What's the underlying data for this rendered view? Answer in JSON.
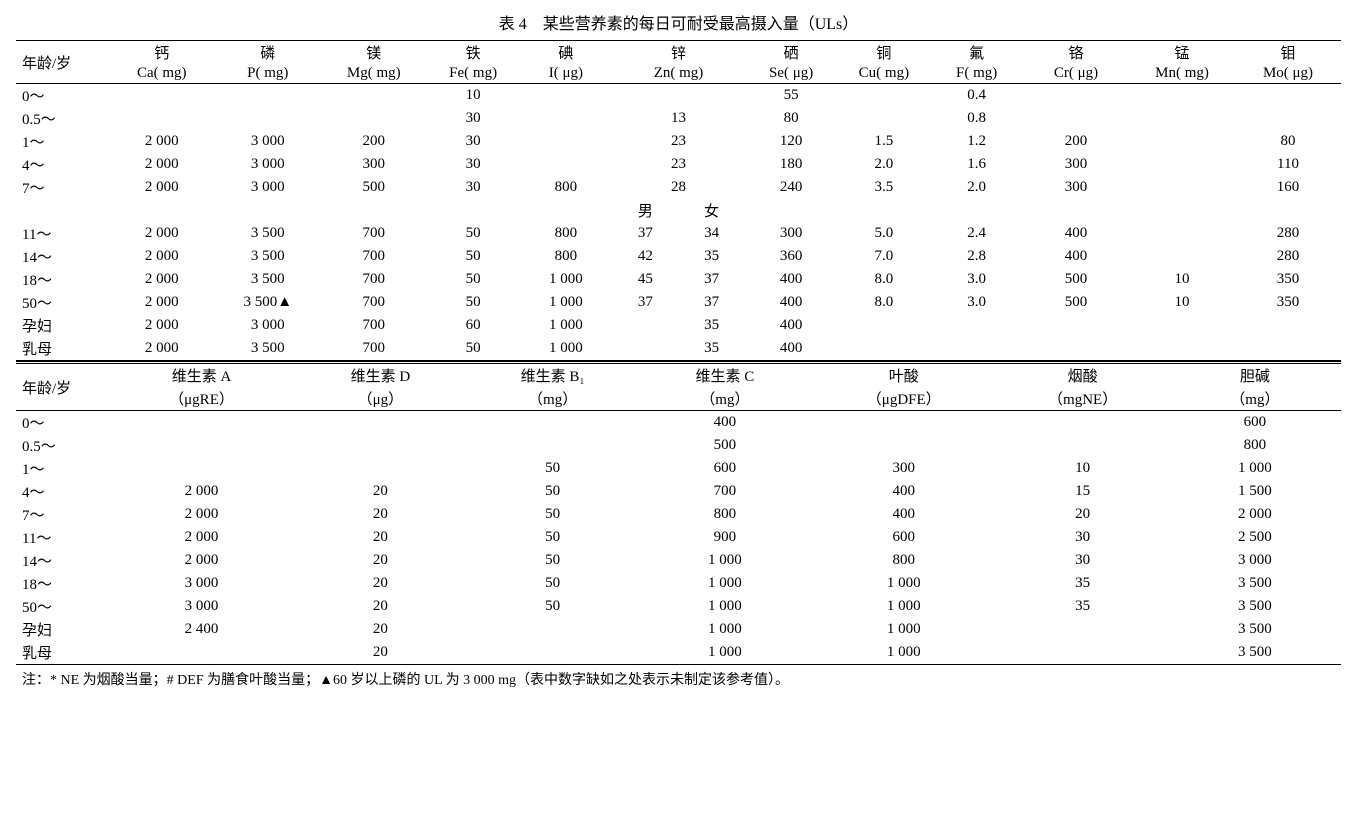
{
  "title": "表 4　某些营养素的每日可耐受最高摄入量（ULs）",
  "note": "注：* NE 为烟酸当量；# DEF 为膳食叶酸当量；▲60 岁以上磷的 UL 为 3 000 mg（表中数字缺如之处表示未制定该参考值）。",
  "t1": {
    "age_label": "年龄/岁",
    "headers_cn": [
      "钙",
      "磷",
      "镁",
      "铁",
      "碘",
      "锌",
      "硒",
      "铜",
      "氟",
      "铬",
      "锰",
      "钼"
    ],
    "headers_en": [
      "Ca( mg)",
      "P( mg)",
      "Mg( mg)",
      "Fe( mg)",
      "I( μg)",
      "Zn( mg)",
      "Se( μg)",
      "Cu( mg)",
      "F( mg)",
      "Cr( μg)",
      "Mn( mg)",
      "Mo( μg)"
    ],
    "zn_sub": {
      "m": "男",
      "f": "女"
    },
    "rows": [
      {
        "age": "0～",
        "ca": "",
        "p": "",
        "mg": "",
        "fe": "10",
        "i": "",
        "zn": "",
        "se": "55",
        "cu": "",
        "f": "0.4",
        "cr": "",
        "mn": "",
        "mo": ""
      },
      {
        "age": "0.5～",
        "ca": "",
        "p": "",
        "mg": "",
        "fe": "30",
        "i": "",
        "zn": "13",
        "se": "80",
        "cu": "",
        "f": "0.8",
        "cr": "",
        "mn": "",
        "mo": ""
      },
      {
        "age": "1～",
        "ca": "2 000",
        "p": "3 000",
        "mg": "200",
        "fe": "30",
        "i": "",
        "zn": "23",
        "se": "120",
        "cu": "1.5",
        "f": "1.2",
        "cr": "200",
        "mn": "",
        "mo": "80"
      },
      {
        "age": "4～",
        "ca": "2 000",
        "p": "3 000",
        "mg": "300",
        "fe": "30",
        "i": "",
        "zn": "23",
        "se": "180",
        "cu": "2.0",
        "f": "1.6",
        "cr": "300",
        "mn": "",
        "mo": "110"
      },
      {
        "age": "7～",
        "ca": "2 000",
        "p": "3 000",
        "mg": "500",
        "fe": "30",
        "i": "800",
        "zn": "28",
        "se": "240",
        "cu": "3.5",
        "f": "2.0",
        "cr": "300",
        "mn": "",
        "mo": "160"
      }
    ],
    "rows_split": [
      {
        "age": "11～",
        "ca": "2 000",
        "p": "3 500",
        "mg": "700",
        "fe": "50",
        "i": "800",
        "znm": "37",
        "znf": "34",
        "se": "300",
        "cu": "5.0",
        "f": "2.4",
        "cr": "400",
        "mn": "",
        "mo": "280"
      },
      {
        "age": "14～",
        "ca": "2 000",
        "p": "3 500",
        "mg": "700",
        "fe": "50",
        "i": "800",
        "znm": "42",
        "znf": "35",
        "se": "360",
        "cu": "7.0",
        "f": "2.8",
        "cr": "400",
        "mn": "",
        "mo": "280"
      },
      {
        "age": "18～",
        "ca": "2 000",
        "p": "3 500",
        "mg": "700",
        "fe": "50",
        "i": "1 000",
        "znm": "45",
        "znf": "37",
        "se": "400",
        "cu": "8.0",
        "f": "3.0",
        "cr": "500",
        "mn": "10",
        "mo": "350"
      },
      {
        "age": "50～",
        "ca": "2 000",
        "p": "3 500▲",
        "mg": "700",
        "fe": "50",
        "i": "1 000",
        "znm": "37",
        "znf": "37",
        "se": "400",
        "cu": "8.0",
        "f": "3.0",
        "cr": "500",
        "mn": "10",
        "mo": "350"
      },
      {
        "age": "孕妇",
        "ca": "2 000",
        "p": "3 000",
        "mg": "700",
        "fe": "60",
        "i": "1 000",
        "znm": "",
        "znf": "35",
        "se": "400",
        "cu": "",
        "f": "",
        "cr": "",
        "mn": "",
        "mo": ""
      },
      {
        "age": "乳母",
        "ca": "2 000",
        "p": "3 500",
        "mg": "700",
        "fe": "50",
        "i": "1 000",
        "znm": "",
        "znf": "35",
        "se": "400",
        "cu": "",
        "f": "",
        "cr": "",
        "mn": "",
        "mo": ""
      }
    ]
  },
  "t2": {
    "age_label": "年龄/岁",
    "headers_cn": [
      "维生素 A",
      "维生素 D",
      "维生素 B₁",
      "维生素 C",
      "叶酸",
      "烟酸",
      "胆碱"
    ],
    "headers_en": [
      "（μgRE）",
      "（μg）",
      "（mg）",
      "（mg）",
      "（μgDFE）",
      "（mgNE）",
      "（mg）"
    ],
    "rows": [
      {
        "age": "0～",
        "va": "",
        "vd": "",
        "vb1": "",
        "vc": "400",
        "fa": "",
        "na": "",
        "ch": "600"
      },
      {
        "age": "0.5～",
        "va": "",
        "vd": "",
        "vb1": "",
        "vc": "500",
        "fa": "",
        "na": "",
        "ch": "800"
      },
      {
        "age": "1～",
        "va": "",
        "vd": "",
        "vb1": "50",
        "vc": "600",
        "fa": "300",
        "na": "10",
        "ch": "1 000"
      },
      {
        "age": "4～",
        "va": "2 000",
        "vd": "20",
        "vb1": "50",
        "vc": "700",
        "fa": "400",
        "na": "15",
        "ch": "1 500"
      },
      {
        "age": "7～",
        "va": "2 000",
        "vd": "20",
        "vb1": "50",
        "vc": "800",
        "fa": "400",
        "na": "20",
        "ch": "2 000"
      },
      {
        "age": "11～",
        "va": "2 000",
        "vd": "20",
        "vb1": "50",
        "vc": "900",
        "fa": "600",
        "na": "30",
        "ch": "2 500"
      },
      {
        "age": "14～",
        "va": "2 000",
        "vd": "20",
        "vb1": "50",
        "vc": "1 000",
        "fa": "800",
        "na": "30",
        "ch": "3 000"
      },
      {
        "age": "18～",
        "va": "3 000",
        "vd": "20",
        "vb1": "50",
        "vc": "1 000",
        "fa": "1 000",
        "na": "35",
        "ch": "3 500"
      },
      {
        "age": "50～",
        "va": "3 000",
        "vd": "20",
        "vb1": "50",
        "vc": "1 000",
        "fa": "1 000",
        "na": "35",
        "ch": "3 500"
      },
      {
        "age": "孕妇",
        "va": "2 400",
        "vd": "20",
        "vb1": "",
        "vc": "1 000",
        "fa": "1 000",
        "na": "",
        "ch": "3 500"
      },
      {
        "age": "乳母",
        "va": "",
        "vd": "20",
        "vb1": "",
        "vc": "1 000",
        "fa": "1 000",
        "na": "",
        "ch": "3 500"
      }
    ]
  }
}
